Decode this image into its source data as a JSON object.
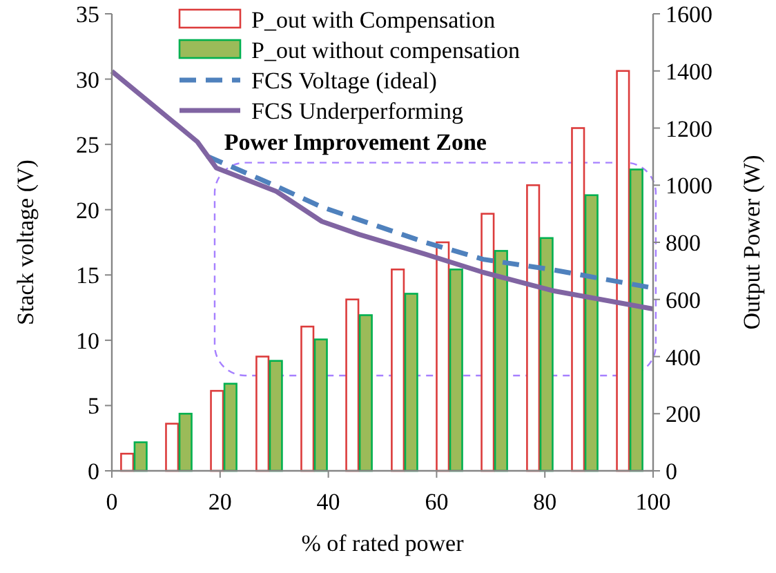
{
  "chart_data": {
    "type": "bar",
    "xlabel": "% of rated power",
    "ylabel": "Stack voltage (V)",
    "y2label": "Output Power  (W)",
    "x": [
      4.2,
      12.5,
      20.8,
      29.2,
      37.5,
      45.8,
      54.2,
      62.5,
      70.8,
      79.2,
      87.5,
      95.8
    ],
    "xlim": [
      0,
      100
    ],
    "xticks": [
      0,
      20,
      40,
      60,
      80,
      100
    ],
    "ylim": [
      0,
      35
    ],
    "yticks": [
      0,
      5,
      10,
      15,
      20,
      25,
      30,
      35
    ],
    "y2lim": [
      0,
      1600
    ],
    "y2ticks": [
      0,
      200,
      400,
      600,
      800,
      1000,
      1200,
      1400,
      1600
    ],
    "series": [
      {
        "name": "P_out with Compensation",
        "axis": "y2",
        "color": "#dc3c3c",
        "values": [
          60,
          165,
          280,
          400,
          505,
          600,
          705,
          800,
          900,
          1000,
          1200,
          1400
        ]
      },
      {
        "name": "P_out without compensation",
        "axis": "y2",
        "color": "#9bbb59",
        "values": [
          100,
          200,
          305,
          385,
          460,
          545,
          620,
          705,
          770,
          815,
          965,
          1055
        ]
      },
      {
        "name": "FCS Voltage (ideal)",
        "type": "line",
        "axis": "y",
        "color": "#4f81bd",
        "line_style": "dashed",
        "x": [
          17.6,
          30.4,
          38.8,
          57.9,
          68.6,
          81.4,
          100
        ],
        "values": [
          24.1,
          21.8,
          20.2,
          17.5,
          16.2,
          15.4,
          14.0
        ]
      },
      {
        "name": "FCS Underperforming",
        "type": "line",
        "axis": "y",
        "color": "#8064a2",
        "line_style": "solid",
        "x": [
          0,
          15.8,
          19.3,
          30.4,
          38.8,
          45.7,
          57.9,
          68.6,
          81.4,
          100
        ],
        "values": [
          30.6,
          25.2,
          23.2,
          21.4,
          19.1,
          18.1,
          16.6,
          15.2,
          13.8,
          12.4
        ]
      }
    ],
    "annotations": [
      "Power Improvement Zone"
    ],
    "legend": "top",
    "grid": false,
    "marker": "none"
  }
}
